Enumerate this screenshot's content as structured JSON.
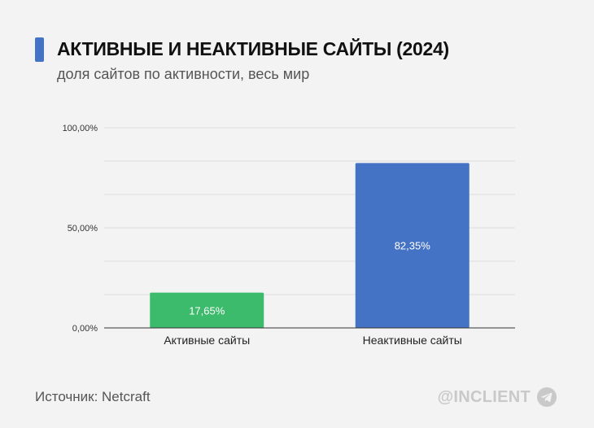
{
  "header": {
    "title": "АКТИВНЫЕ И НЕАКТИВНЫЕ САЙТЫ (2024)",
    "subtitle": "доля сайтов по активности, весь мир",
    "accent_color": "#4472c4"
  },
  "footer": {
    "source": "Источник: Netcraft",
    "handle": "@INCLIENT",
    "icon": "telegram-icon"
  },
  "chart_data": {
    "type": "bar",
    "title": "АКТИВНЫЕ И НЕАКТИВНЫЕ САЙТЫ (2024)",
    "subtitle": "доля сайтов по активности, весь мир",
    "categories": [
      "Активные сайты",
      "Неактивные сайты"
    ],
    "values": [
      17.65,
      82.35
    ],
    "data_labels": [
      "17,65%",
      "82,35%"
    ],
    "colors": [
      "#3dbb6c",
      "#4472c4"
    ],
    "ylim": [
      0,
      100
    ],
    "yticks": [
      0,
      50,
      100
    ],
    "ytick_labels": [
      "0,00%",
      "50,00%",
      "100,00%"
    ],
    "grid": true,
    "legend": "none"
  }
}
